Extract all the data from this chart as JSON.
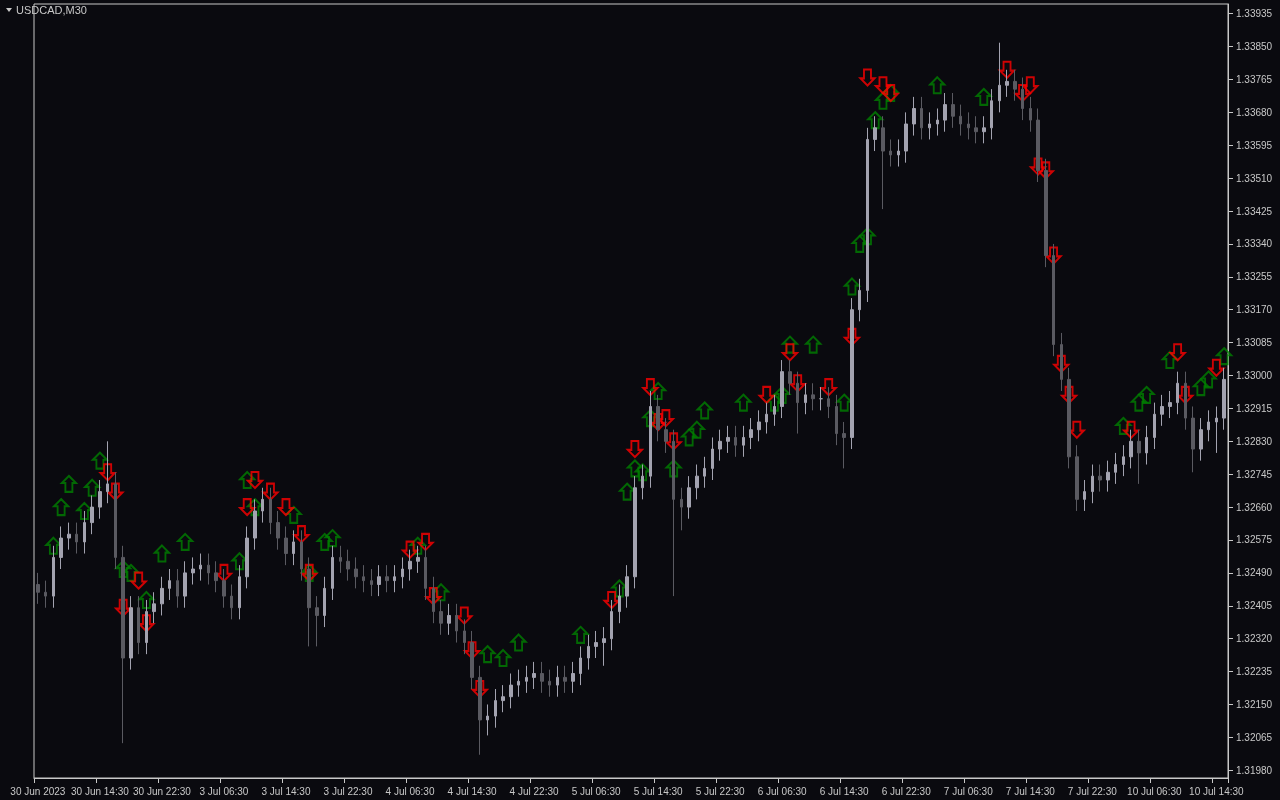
{
  "chart_data": {
    "type": "candlestick",
    "title": "USDCAD,M30",
    "categories": [
      "30 Jun 2023",
      null,
      null,
      null,
      null,
      null,
      null,
      null,
      "30 Jun 14:30",
      null,
      null,
      null,
      null,
      null,
      null,
      null,
      "30 Jun 22:30",
      null,
      null,
      null,
      null,
      null,
      null,
      null,
      "3 Jul 06:30",
      null,
      null,
      null,
      null,
      null,
      null,
      null,
      "3 Jul 14:30",
      null,
      null,
      null,
      null,
      null,
      null,
      null,
      "3 Jul 22:30",
      null,
      null,
      null,
      null,
      null,
      null,
      null,
      "4 Jul 06:30",
      null,
      null,
      null,
      null,
      null,
      null,
      null,
      "4 Jul 14:30",
      null,
      null,
      null,
      null,
      null,
      null,
      null,
      "4 Jul 22:30",
      null,
      null,
      null,
      null,
      null,
      null,
      null,
      "5 Jul 06:30",
      null,
      null,
      null,
      null,
      null,
      null,
      null,
      "5 Jul 14:30",
      null,
      null,
      null,
      null,
      null,
      null,
      null,
      "5 Jul 22:30",
      null,
      null,
      null,
      null,
      null,
      null,
      null,
      "6 Jul 06:30",
      null,
      null,
      null,
      null,
      null,
      null,
      null,
      "6 Jul 14:30",
      null,
      null,
      null,
      null,
      null,
      null,
      null,
      "6 Jul 22:30",
      null,
      null,
      null,
      null,
      null,
      null,
      null,
      "7 Jul 06:30",
      null,
      null,
      null,
      null,
      null,
      null,
      null,
      "7 Jul 14:30",
      null,
      null,
      null,
      null,
      null,
      null,
      null,
      "7 Jul 22:30",
      null,
      null,
      null,
      null,
      null,
      null,
      null,
      "10 Jul 06:30",
      null,
      null,
      null,
      null,
      null,
      null,
      null,
      "10 Jul 14:30",
      null
    ],
    "ylim": [
      1.3196,
      1.3396
    ],
    "yticks": [
      {
        "value": 1.3198,
        "label": "1.31980"
      },
      {
        "value": 1.32065,
        "label": "1.32065"
      },
      {
        "value": 1.3215,
        "label": "1.32150"
      },
      {
        "value": 1.32235,
        "label": "1.32235"
      },
      {
        "value": 1.3232,
        "label": "1.32320"
      },
      {
        "value": 1.32405,
        "label": "1.32405"
      },
      {
        "value": 1.3249,
        "label": "1.32490"
      },
      {
        "value": 1.32575,
        "label": "1.32575"
      },
      {
        "value": 1.3266,
        "label": "1.32660"
      },
      {
        "value": 1.32745,
        "label": "1.32745"
      },
      {
        "value": 1.3283,
        "label": "1.32830"
      },
      {
        "value": 1.32915,
        "label": "1.32915"
      },
      {
        "value": 1.33,
        "label": "1.33000"
      },
      {
        "value": 1.33085,
        "label": "1.33085"
      },
      {
        "value": 1.3317,
        "label": "1.33170"
      },
      {
        "value": 1.33255,
        "label": "1.33255"
      },
      {
        "value": 1.3334,
        "label": "1.33340"
      },
      {
        "value": 1.33425,
        "label": "1.33425"
      },
      {
        "value": 1.3351,
        "label": "1.33510"
      },
      {
        "value": 1.33595,
        "label": "1.33595"
      },
      {
        "value": 1.3368,
        "label": "1.33680"
      },
      {
        "value": 1.33765,
        "label": "1.33765"
      },
      {
        "value": 1.3385,
        "label": "1.33850"
      },
      {
        "value": 1.33935,
        "label": "1.33935"
      }
    ],
    "series": [
      {
        "type": "candlestick",
        "colors": [
          "#5a5a61",
          "#5a5a61",
          "#a3a3b0",
          "#a3a3b0",
          "#a3a3b0",
          "#5a5a61",
          "#a3a3b0",
          "#a3a3b0",
          "#a3a3b0",
          "#a3a3b0",
          "#5a5a61",
          "#5a5a61",
          "#a3a3b0",
          "#5a5a61",
          "#a3a3b0",
          "#a3a3b0",
          "#a3a3b0",
          "#a3a3b0",
          "#5a5a61",
          "#a3a3b0",
          "#a3a3b0",
          "#a3a3b0",
          "#5a5a61",
          "#5a5a61",
          "#5a5a61",
          "#5a5a61",
          "#a3a3b0",
          "#a3a3b0",
          "#a3a3b0",
          "#a3a3b0",
          "#5a5a61",
          "#5a5a61",
          "#5a5a61",
          "#a3a3b0",
          "#5a5a61",
          "#5a5a61",
          "#5a5a61",
          "#a3a3b0",
          "#a3a3b0",
          "#5a5a61",
          "#5a5a61",
          "#5a5a61",
          "#5a5a61",
          "#5a5a61",
          "#a3a3b0",
          "#5a5a61",
          "#a3a3b0",
          "#a3a3b0",
          "#a3a3b0",
          "#a3a3b0",
          "#5a5a61",
          "#5a5a61",
          "#5a5a61",
          "#a3a3b0",
          "#5a5a61",
          "#5a5a61",
          "#5a5a61",
          "#5a5a61",
          "#a3a3b0",
          "#a3a3b0",
          "#a3a3b0",
          "#a3a3b0",
          "#a3a3b0",
          "#a3a3b0",
          "#a3a3b0",
          "#5a5a61",
          "#5a5a61",
          "#a3a3b0",
          "#5a5a61",
          "#a3a3b0",
          "#a3a3b0",
          "#a3a3b0",
          "#a3a3b0",
          "#a3a3b0",
          "#a3a3b0",
          "#a3a3b0",
          "#a3a3b0",
          "#a3a3b0",
          "#a3a3b0",
          "#a3a3b0",
          "#5a5a61",
          "#5a5a61",
          "#5a5a61",
          "#5a5a61",
          "#a3a3b0",
          "#a3a3b0",
          "#a3a3b0",
          "#a3a3b0",
          "#a3a3b0",
          "#a3a3b0",
          "#5a5a61",
          "#a3a3b0",
          "#a3a3b0",
          "#a3a3b0",
          "#a3a3b0",
          "#a3a3b0",
          "#a3a3b0",
          "#5a5a61",
          "#5a5a61",
          "#a3a3b0",
          "#5a5a61",
          "#a3a3b0",
          "#5a5a61",
          "#5a5a61",
          "#5a5a61",
          "#a3a3b0",
          "#a3a3b0",
          "#a3a3b0",
          "#a3a3b0",
          "#5a5a61",
          "#5a5a61",
          "#a3a3b0",
          "#a3a3b0",
          "#a3a3b0",
          "#5a5a61",
          "#a3a3b0",
          "#a3a3b0",
          "#a3a3b0",
          "#5a5a61",
          "#5a5a61",
          "#5a5a61",
          "#5a5a61",
          "#a3a3b0",
          "#a3a3b0",
          "#a3a3b0",
          "#a3a3b0",
          "#5a5a61",
          "#5a5a61",
          "#5a5a61",
          "#5a5a61",
          "#5a5a61",
          "#5a5a61",
          "#5a5a61",
          "#5a5a61",
          "#5a5a61",
          "#a3a3b0",
          "#a3a3b0",
          "#5a5a61",
          "#a3a3b0",
          "#a3a3b0",
          "#a3a3b0",
          "#a3a3b0",
          "#5a5a61",
          "#a3a3b0",
          "#a3a3b0",
          "#a3a3b0",
          "#a3a3b0",
          "#a3a3b0",
          "#5a5a61",
          "#5a5a61",
          "#a3a3b0",
          "#a3a3b0",
          "#a3a3b0",
          "#a3a3b0"
        ],
        "ohlc": [
          [
            1.3246,
            1.3249,
            1.3241,
            1.3244
          ],
          [
            1.3244,
            1.3247,
            1.324,
            1.3243
          ],
          [
            1.3243,
            1.3256,
            1.324,
            1.3253
          ],
          [
            1.3253,
            1.3261,
            1.325,
            1.3258
          ],
          [
            1.3258,
            1.3262,
            1.3255,
            1.3259
          ],
          [
            1.3259,
            1.3262,
            1.3254,
            1.3257
          ],
          [
            1.3257,
            1.3265,
            1.3254,
            1.3262
          ],
          [
            1.3262,
            1.3269,
            1.3259,
            1.3266
          ],
          [
            1.3266,
            1.3273,
            1.3263,
            1.327
          ],
          [
            1.327,
            1.3283,
            1.3267,
            1.3272
          ],
          [
            1.3272,
            1.3275,
            1.325,
            1.3253
          ],
          [
            1.3253,
            1.3256,
            1.3205,
            1.3227
          ],
          [
            1.3227,
            1.3243,
            1.3224,
            1.324
          ],
          [
            1.324,
            1.3243,
            1.3228,
            1.3231
          ],
          [
            1.3231,
            1.3242,
            1.3228,
            1.3239
          ],
          [
            1.3239,
            1.3244,
            1.3236,
            1.3241
          ],
          [
            1.3241,
            1.3248,
            1.3238,
            1.3245
          ],
          [
            1.3245,
            1.325,
            1.3242,
            1.3247
          ],
          [
            1.3247,
            1.325,
            1.324,
            1.3243
          ],
          [
            1.3243,
            1.3252,
            1.324,
            1.3249
          ],
          [
            1.3249,
            1.3253,
            1.3246,
            1.325
          ],
          [
            1.325,
            1.3254,
            1.3247,
            1.3251
          ],
          [
            1.3251,
            1.3254,
            1.3246,
            1.3249
          ],
          [
            1.3249,
            1.3252,
            1.3244,
            1.3247
          ],
          [
            1.3247,
            1.325,
            1.324,
            1.3243
          ],
          [
            1.3243,
            1.3246,
            1.3237,
            1.324
          ],
          [
            1.324,
            1.3251,
            1.3237,
            1.3248
          ],
          [
            1.3248,
            1.3261,
            1.3245,
            1.3258
          ],
          [
            1.3258,
            1.3268,
            1.3255,
            1.3265
          ],
          [
            1.3265,
            1.3271,
            1.3262,
            1.3268
          ],
          [
            1.3268,
            1.3271,
            1.3259,
            1.3262
          ],
          [
            1.3262,
            1.3265,
            1.3255,
            1.3258
          ],
          [
            1.3258,
            1.3261,
            1.3251,
            1.3254
          ],
          [
            1.3254,
            1.326,
            1.3251,
            1.3257
          ],
          [
            1.3257,
            1.326,
            1.3247,
            1.325
          ],
          [
            1.325,
            1.3253,
            1.323,
            1.324
          ],
          [
            1.324,
            1.3243,
            1.323,
            1.3238
          ],
          [
            1.3238,
            1.3248,
            1.3235,
            1.3245
          ],
          [
            1.3245,
            1.3256,
            1.3242,
            1.3253
          ],
          [
            1.3253,
            1.3256,
            1.3249,
            1.3252
          ],
          [
            1.3252,
            1.3255,
            1.3247,
            1.325
          ],
          [
            1.325,
            1.3253,
            1.3245,
            1.3248
          ],
          [
            1.3248,
            1.3251,
            1.3244,
            1.3247
          ],
          [
            1.3247,
            1.325,
            1.3243,
            1.3246
          ],
          [
            1.3246,
            1.3251,
            1.3243,
            1.3248
          ],
          [
            1.3248,
            1.3251,
            1.3244,
            1.3247
          ],
          [
            1.3247,
            1.3251,
            1.3244,
            1.3248
          ],
          [
            1.3248,
            1.3253,
            1.3245,
            1.325
          ],
          [
            1.325,
            1.3255,
            1.3247,
            1.3252
          ],
          [
            1.3252,
            1.3256,
            1.3249,
            1.3253
          ],
          [
            1.3253,
            1.3256,
            1.3242,
            1.3245
          ],
          [
            1.3245,
            1.3248,
            1.3236,
            1.3239
          ],
          [
            1.3239,
            1.3242,
            1.3233,
            1.3236
          ],
          [
            1.3236,
            1.3241,
            1.3233,
            1.3238
          ],
          [
            1.3238,
            1.3241,
            1.3231,
            1.3234
          ],
          [
            1.3234,
            1.3237,
            1.3228,
            1.3231
          ],
          [
            1.3231,
            1.3234,
            1.3219,
            1.3222
          ],
          [
            1.3222,
            1.3225,
            1.3202,
            1.3211
          ],
          [
            1.3211,
            1.3215,
            1.3207,
            1.3212
          ],
          [
            1.3212,
            1.3219,
            1.3209,
            1.3216
          ],
          [
            1.3216,
            1.322,
            1.3213,
            1.3217
          ],
          [
            1.3217,
            1.3223,
            1.3214,
            1.322
          ],
          [
            1.322,
            1.3224,
            1.3217,
            1.3221
          ],
          [
            1.3221,
            1.3225,
            1.3218,
            1.3222
          ],
          [
            1.3222,
            1.3226,
            1.3219,
            1.3223
          ],
          [
            1.3223,
            1.3226,
            1.3218,
            1.3221
          ],
          [
            1.3221,
            1.3224,
            1.3217,
            1.322
          ],
          [
            1.322,
            1.3225,
            1.3217,
            1.3222
          ],
          [
            1.3222,
            1.3225,
            1.3218,
            1.3221
          ],
          [
            1.3221,
            1.3226,
            1.3218,
            1.3223
          ],
          [
            1.3223,
            1.323,
            1.322,
            1.3227
          ],
          [
            1.3227,
            1.3233,
            1.3224,
            1.323
          ],
          [
            1.323,
            1.3234,
            1.3227,
            1.3231
          ],
          [
            1.3231,
            1.3235,
            1.3225,
            1.3232
          ],
          [
            1.3232,
            1.3242,
            1.3229,
            1.3239
          ],
          [
            1.3239,
            1.3246,
            1.3236,
            1.3243
          ],
          [
            1.3243,
            1.3251,
            1.324,
            1.3248
          ],
          [
            1.3248,
            1.3274,
            1.3245,
            1.3271
          ],
          [
            1.3271,
            1.3277,
            1.3268,
            1.3274
          ],
          [
            1.3274,
            1.3296,
            1.3271,
            1.3292
          ],
          [
            1.3292,
            1.3295,
            1.3283,
            1.3286
          ],
          [
            1.3286,
            1.3289,
            1.328,
            1.3283
          ],
          [
            1.3283,
            1.3286,
            1.3243,
            1.3268
          ],
          [
            1.3268,
            1.3271,
            1.326,
            1.3266
          ],
          [
            1.3266,
            1.3274,
            1.3263,
            1.3271
          ],
          [
            1.3271,
            1.3277,
            1.3268,
            1.3274
          ],
          [
            1.3274,
            1.3279,
            1.3271,
            1.3276
          ],
          [
            1.3276,
            1.3284,
            1.3273,
            1.3281
          ],
          [
            1.3281,
            1.3286,
            1.3278,
            1.3283
          ],
          [
            1.3283,
            1.3287,
            1.328,
            1.3284
          ],
          [
            1.3284,
            1.3287,
            1.3279,
            1.3282
          ],
          [
            1.3282,
            1.3287,
            1.3279,
            1.3284
          ],
          [
            1.3284,
            1.3289,
            1.3281,
            1.3286
          ],
          [
            1.3286,
            1.3291,
            1.3283,
            1.3288
          ],
          [
            1.3288,
            1.3293,
            1.3285,
            1.329
          ],
          [
            1.329,
            1.3295,
            1.3287,
            1.3292
          ],
          [
            1.3292,
            1.3304,
            1.3289,
            1.3301
          ],
          [
            1.3301,
            1.3304,
            1.3295,
            1.3298
          ],
          [
            1.3298,
            1.3301,
            1.3285,
            1.3293
          ],
          [
            1.3293,
            1.3298,
            1.329,
            1.3295
          ],
          [
            1.3295,
            1.3298,
            1.3291,
            1.3294
          ],
          [
            1.3294,
            1.3297,
            1.3291,
            1.3294
          ],
          [
            1.3294,
            1.3297,
            1.3289,
            1.3292
          ],
          [
            1.3292,
            1.3295,
            1.3282,
            1.3285
          ],
          [
            1.3285,
            1.3288,
            1.3276,
            1.3284
          ],
          [
            1.3284,
            1.332,
            1.3281,
            1.3317
          ],
          [
            1.3317,
            1.3325,
            1.3314,
            1.3322
          ],
          [
            1.3322,
            1.3364,
            1.3319,
            1.3361
          ],
          [
            1.3361,
            1.3367,
            1.3358,
            1.3364
          ],
          [
            1.3364,
            1.3367,
            1.3343,
            1.3358
          ],
          [
            1.3358,
            1.3361,
            1.3354,
            1.3357
          ],
          [
            1.3357,
            1.3361,
            1.3354,
            1.3358
          ],
          [
            1.3358,
            1.3368,
            1.3355,
            1.3365
          ],
          [
            1.3365,
            1.3372,
            1.3362,
            1.3369
          ],
          [
            1.3369,
            1.3372,
            1.3361,
            1.3364
          ],
          [
            1.3364,
            1.3368,
            1.3361,
            1.3365
          ],
          [
            1.3365,
            1.3369,
            1.3362,
            1.3366
          ],
          [
            1.3366,
            1.3373,
            1.3363,
            1.337
          ],
          [
            1.337,
            1.3373,
            1.3364,
            1.3367
          ],
          [
            1.3367,
            1.337,
            1.3362,
            1.3365
          ],
          [
            1.3365,
            1.3368,
            1.3361,
            1.3364
          ],
          [
            1.3364,
            1.3367,
            1.336,
            1.3363
          ],
          [
            1.3363,
            1.3367,
            1.336,
            1.3364
          ],
          [
            1.3364,
            1.3374,
            1.3361,
            1.3371
          ],
          [
            1.3371,
            1.3386,
            1.3368,
            1.3375
          ],
          [
            1.3375,
            1.3379,
            1.3372,
            1.3376
          ],
          [
            1.3376,
            1.3379,
            1.3371,
            1.3374
          ],
          [
            1.3374,
            1.3377,
            1.3366,
            1.3369
          ],
          [
            1.3369,
            1.3372,
            1.3363,
            1.3366
          ],
          [
            1.3366,
            1.3369,
            1.335,
            1.3353
          ],
          [
            1.3353,
            1.3356,
            1.3328,
            1.3331
          ],
          [
            1.3331,
            1.3334,
            1.3305,
            1.3308
          ],
          [
            1.3308,
            1.3311,
            1.3296,
            1.3299
          ],
          [
            1.3299,
            1.3302,
            1.3276,
            1.3279
          ],
          [
            1.3279,
            1.3282,
            1.3265,
            1.3268
          ],
          [
            1.3268,
            1.3273,
            1.3265,
            1.327
          ],
          [
            1.327,
            1.3277,
            1.3267,
            1.3274
          ],
          [
            1.3274,
            1.3277,
            1.327,
            1.3273
          ],
          [
            1.3273,
            1.3278,
            1.327,
            1.3275
          ],
          [
            1.3275,
            1.328,
            1.3272,
            1.3277
          ],
          [
            1.3277,
            1.3282,
            1.3274,
            1.3279
          ],
          [
            1.3279,
            1.3286,
            1.3276,
            1.3283
          ],
          [
            1.3283,
            1.3286,
            1.3272,
            1.328
          ],
          [
            1.328,
            1.3287,
            1.3277,
            1.3284
          ],
          [
            1.3284,
            1.3293,
            1.3281,
            1.329
          ],
          [
            1.329,
            1.3295,
            1.3287,
            1.3292
          ],
          [
            1.3292,
            1.3296,
            1.3289,
            1.3293
          ],
          [
            1.3293,
            1.3301,
            1.329,
            1.3298
          ],
          [
            1.3298,
            1.3301,
            1.3286,
            1.3289
          ],
          [
            1.3289,
            1.3292,
            1.3275,
            1.3281
          ],
          [
            1.3281,
            1.3289,
            1.3278,
            1.3286
          ],
          [
            1.3286,
            1.3291,
            1.3283,
            1.3288
          ],
          [
            1.3288,
            1.3292,
            1.328,
            1.3289
          ],
          [
            1.3289,
            1.3302,
            1.3286,
            1.3299
          ]
        ]
      },
      {
        "type": "scatter",
        "color": "#008000",
        "marker": "triangle",
        "values": [
          null,
          null,
          1.3256,
          1.3266,
          1.3272,
          null,
          1.3265,
          1.3271,
          1.3278,
          null,
          null,
          1.325,
          1.3249,
          null,
          1.3242,
          null,
          1.3254,
          null,
          null,
          1.3257,
          null,
          null,
          null,
          null,
          null,
          null,
          1.3252,
          1.3273,
          1.3266,
          null,
          null,
          null,
          null,
          1.3264,
          null,
          1.3249,
          null,
          1.3257,
          1.3258,
          null,
          null,
          null,
          null,
          null,
          null,
          null,
          null,
          null,
          null,
          1.3256,
          null,
          null,
          1.3244,
          null,
          null,
          null,
          null,
          null,
          1.3228,
          null,
          1.3227,
          null,
          1.3231,
          null,
          null,
          null,
          null,
          null,
          null,
          null,
          1.3233,
          null,
          null,
          null,
          null,
          1.3245,
          1.327,
          1.3276,
          1.3275,
          1.3289,
          1.3296,
          null,
          1.3276,
          null,
          1.3284,
          1.3286,
          1.3291,
          null,
          null,
          null,
          null,
          1.3293,
          null,
          null,
          null,
          1.3293,
          1.3295,
          1.3308,
          null,
          null,
          1.3308,
          null,
          null,
          null,
          1.3293,
          1.3323,
          1.3334,
          1.3336,
          1.3366,
          1.3371,
          1.3373,
          null,
          null,
          null,
          null,
          null,
          1.3375,
          null,
          null,
          null,
          null,
          null,
          1.3372,
          null,
          null,
          null,
          null,
          null,
          null,
          null,
          null,
          null,
          null,
          null,
          null,
          null,
          null,
          null,
          null,
          null,
          1.3287,
          null,
          1.3293,
          1.3295,
          null,
          null,
          1.3304,
          null,
          null,
          null,
          1.3297,
          1.3299,
          null,
          1.3305
        ]
      },
      {
        "type": "scatter",
        "color": "#ff0000",
        "marker": "triangle",
        "values": [
          null,
          null,
          null,
          null,
          null,
          null,
          null,
          null,
          null,
          1.3275,
          1.327,
          1.324,
          null,
          1.3247,
          1.3236,
          null,
          null,
          null,
          null,
          null,
          null,
          null,
          null,
          null,
          1.3249,
          null,
          null,
          1.3266,
          1.3273,
          null,
          1.327,
          null,
          1.3266,
          null,
          1.3259,
          1.3249,
          null,
          null,
          null,
          null,
          null,
          null,
          null,
          null,
          null,
          null,
          null,
          null,
          1.3255,
          null,
          1.3257,
          1.3243,
          null,
          null,
          null,
          1.3238,
          1.3229,
          1.3219,
          null,
          null,
          null,
          null,
          null,
          null,
          null,
          null,
          null,
          null,
          null,
          null,
          null,
          null,
          null,
          null,
          1.3242,
          null,
          null,
          1.3281,
          null,
          1.3297,
          1.3288,
          1.3289,
          1.3283,
          null,
          null,
          null,
          null,
          null,
          null,
          null,
          null,
          null,
          null,
          null,
          1.3295,
          null,
          null,
          1.3306,
          1.3298,
          null,
          null,
          null,
          1.3297,
          null,
          null,
          1.331,
          null,
          1.3377,
          null,
          1.3375,
          1.3373,
          null,
          null,
          null,
          null,
          null,
          null,
          null,
          null,
          null,
          null,
          null,
          null,
          null,
          null,
          1.3379,
          null,
          1.3373,
          1.3375,
          1.3354,
          1.3353,
          1.3331,
          1.3303,
          1.3295,
          1.3286,
          null,
          null,
          null,
          null,
          null,
          null,
          1.3286,
          null,
          null,
          null,
          null,
          null,
          1.3306,
          1.3295,
          null,
          null,
          null,
          1.3302,
          null
        ]
      }
    ]
  }
}
